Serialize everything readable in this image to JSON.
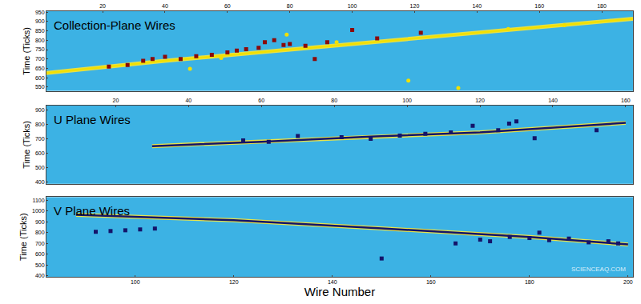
{
  "chart_data": [
    {
      "type": "scatter",
      "title": "Collection-Plane Wires",
      "y_label": "Time (Ticks)",
      "xlim": [
        2,
        190
      ],
      "xticks": [
        20,
        40,
        60,
        80,
        100,
        120,
        140,
        160,
        180
      ],
      "ylim": [
        530,
        955
      ],
      "yticks": [
        550,
        600,
        650,
        700,
        750,
        800,
        850,
        900,
        950
      ],
      "series": [
        {
          "type": "line",
          "color": "#f2e000",
          "line_style": "solid",
          "x": [
            0,
            40,
            70,
            100,
            140,
            190
          ],
          "values": [
            622,
            690,
            735,
            780,
            840,
            915
          ]
        },
        {
          "type": "scatter",
          "color": "#8b0a0a",
          "marker": "square",
          "x": [
            22,
            28,
            33,
            36,
            40,
            45,
            50,
            55,
            60,
            63,
            66,
            70,
            72,
            75,
            78,
            80,
            85,
            88,
            92,
            100,
            108,
            122
          ],
          "values": [
            660,
            668,
            690,
            700,
            712,
            700,
            715,
            722,
            735,
            745,
            752,
            760,
            790,
            800,
            775,
            780,
            770,
            700,
            790,
            855,
            810,
            840
          ]
        },
        {
          "type": "scatter",
          "color": "#f2e000",
          "marker": "circle",
          "x": [
            48,
            58,
            79,
            95,
            118,
            134,
            150,
            168
          ],
          "values": [
            648,
            705,
            830,
            790,
            585,
            545,
            860,
            880
          ]
        }
      ]
    },
    {
      "type": "scatter",
      "title": "U Plane Wires",
      "y_label": "Time (Ticks)",
      "xlim": [
        1,
        162
      ],
      "xticks": [
        20,
        40,
        60,
        80,
        100,
        120,
        140,
        160
      ],
      "ylim": [
        390,
        930
      ],
      "yticks": [
        400,
        500,
        600,
        700,
        800,
        900
      ],
      "series": [
        {
          "type": "line",
          "color": "#14146a",
          "line_style": "solid",
          "x": [
            30,
            60,
            90,
            120,
            160
          ],
          "values": [
            650,
            680,
            715,
            745,
            810
          ]
        },
        {
          "type": "scatter",
          "color": "#14146a",
          "marker": "square",
          "x": [
            55,
            62,
            70,
            82,
            90,
            98,
            105,
            112,
            118,
            125,
            128,
            130,
            135,
            152
          ],
          "values": [
            690,
            680,
            720,
            712,
            700,
            722,
            735,
            745,
            790,
            760,
            805,
            820,
            705,
            760
          ]
        }
      ]
    },
    {
      "type": "scatter",
      "title": "V Plane Wires",
      "x_label": "Wire Number",
      "y_label": "Time (Ticks)",
      "xlim": [
        82,
        201
      ],
      "xticks": [
        100,
        120,
        140,
        160,
        180,
        200
      ],
      "ylim": [
        390,
        1130
      ],
      "yticks": [
        400,
        500,
        600,
        700,
        800,
        900,
        1000,
        1100
      ],
      "annotations": [
        "SCIENCEAQ.COM"
      ],
      "series": [
        {
          "type": "line",
          "color": "#14146a",
          "line_style": "solid",
          "x": [
            88,
            120,
            150,
            180,
            200
          ],
          "values": [
            965,
            915,
            840,
            760,
            690
          ]
        },
        {
          "type": "scatter",
          "color": "#14146a",
          "marker": "square",
          "x": [
            92,
            95,
            98,
            101,
            104,
            165,
            170,
            172,
            176,
            180,
            184,
            188,
            192,
            196,
            198,
            150,
            182
          ],
          "values": [
            808,
            815,
            822,
            830,
            838,
            700,
            735,
            720,
            760,
            750,
            730,
            745,
            710,
            720,
            700,
            560,
            800
          ]
        }
      ]
    }
  ]
}
